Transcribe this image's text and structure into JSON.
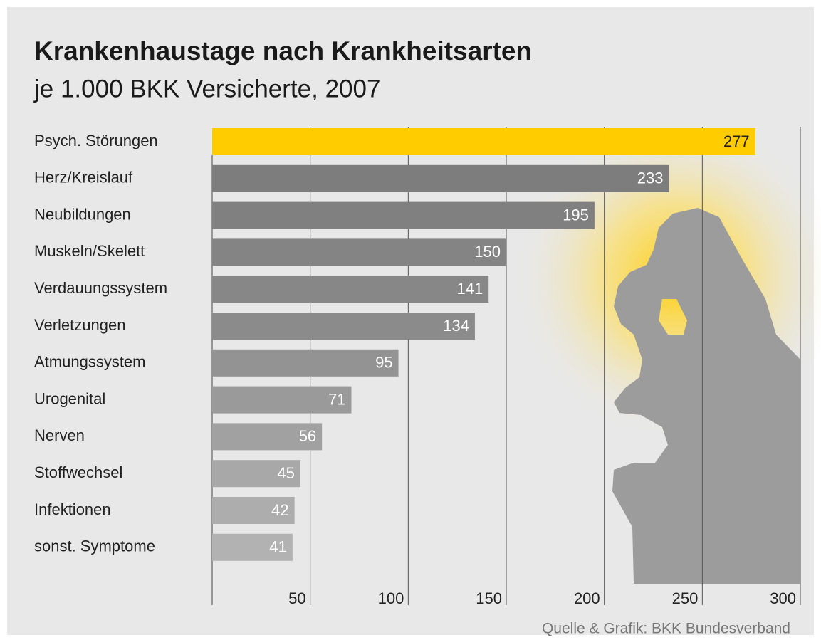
{
  "chart_data": {
    "type": "hbar",
    "title": "Krankenhaustage nach Krankheitsarten",
    "subtitle": "je 1.000 BKK Versicherte, 2007",
    "source": "Quelle & Grafik: BKK Bundesverband",
    "categories": [
      "Psych. Störungen",
      "Herz/Kreislauf",
      "Neubildungen",
      "Muskeln/Skelett",
      "Verdauungssystem",
      "Verletzungen",
      "Atmungssystem",
      "Urogenital",
      "Nerven",
      "Stoffwechsel",
      "Infektionen",
      "sonst. Symptome"
    ],
    "values": [
      277,
      233,
      195,
      150,
      141,
      134,
      95,
      71,
      56,
      45,
      42,
      41
    ],
    "colors": [
      "#ffcc00",
      "#7d7d7d",
      "#808080",
      "#848484",
      "#878787",
      "#8b8b8b",
      "#939393",
      "#9a9a9a",
      "#a1a1a1",
      "#a8a8a8",
      "#adadad",
      "#b2b2b2"
    ],
    "xlim": [
      0,
      300
    ],
    "xticks": [
      50,
      100,
      150,
      200,
      250,
      300
    ],
    "grid": true
  }
}
